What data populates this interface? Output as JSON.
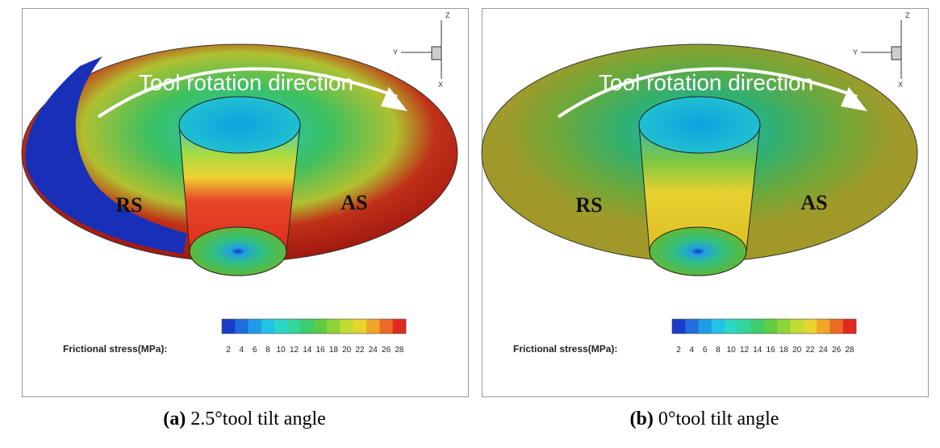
{
  "panels": [
    {
      "rotation_label": "Tool rotation direction",
      "left_label": "RS",
      "right_label": "AS",
      "legend_label": "Frictional stress(MPa):",
      "axes": {
        "z": "Z",
        "y": "Y",
        "x": "X"
      },
      "caption_tag": "(a)",
      "caption": "2.5°tool tilt angle"
    },
    {
      "rotation_label": "Tool rotation direction",
      "left_label": "RS",
      "right_label": "AS",
      "legend_label": "Frictional stress(MPa):",
      "axes": {
        "z": "Z",
        "y": "Y",
        "x": "X"
      },
      "caption_tag": "(b)",
      "caption": "0°tool tilt angle"
    }
  ],
  "colorbar": {
    "ticks": [
      2,
      4,
      6,
      8,
      10,
      12,
      14,
      16,
      18,
      20,
      22,
      24,
      26,
      28
    ],
    "colors": [
      "#1a3cc8",
      "#1f6ee0",
      "#1f9be8",
      "#22c3e6",
      "#2ad7c4",
      "#34d49a",
      "#3ecc6e",
      "#5fcc42",
      "#8fd43a",
      "#c2dc32",
      "#e8d42c",
      "#f0a628",
      "#ec6a24",
      "#e02a20"
    ]
  }
}
